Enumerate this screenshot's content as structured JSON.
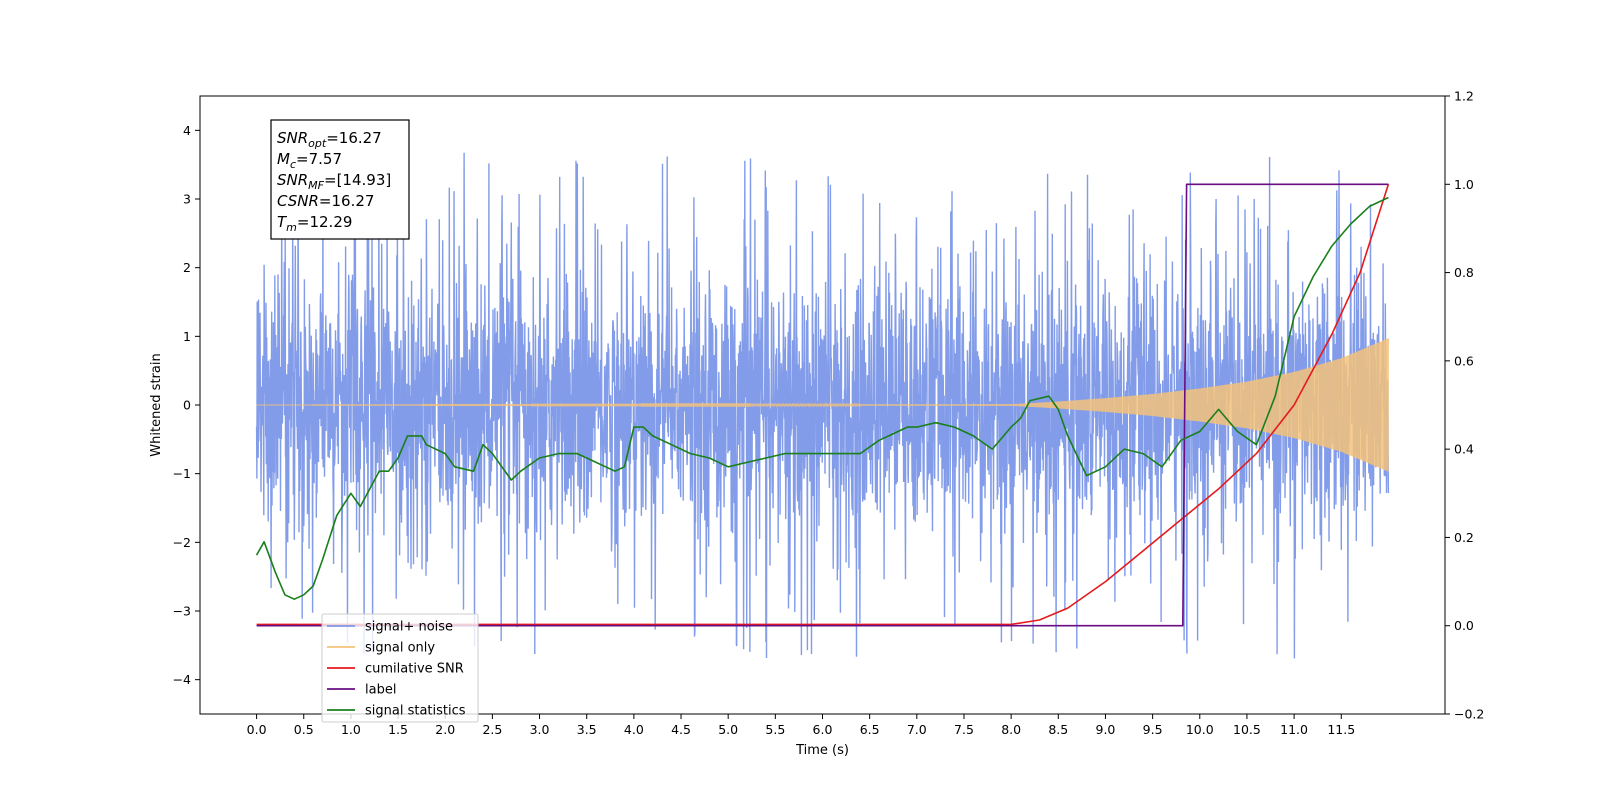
{
  "chart_data": {
    "type": "line",
    "title": "",
    "xlabel": "Time (s)",
    "ylabel": "Whitened strain",
    "ylabel_right": "",
    "xlim": [
      -0.6,
      12.6
    ],
    "ylim_left": [
      -4.5,
      4.5
    ],
    "ylim_right": [
      -0.2,
      1.2
    ],
    "x_ticks": [
      0.0,
      0.5,
      1.0,
      1.5,
      2.0,
      2.5,
      3.0,
      3.5,
      4.0,
      4.5,
      5.0,
      5.5,
      6.0,
      6.5,
      7.0,
      7.5,
      8.0,
      8.5,
      9.0,
      9.5,
      10.0,
      10.5,
      11.0,
      11.5
    ],
    "x_tick_labels": [
      "0.0",
      "0.5",
      "1.0",
      "1.5",
      "2.0",
      "2.5",
      "3.0",
      "3.5",
      "4.0",
      "4.5",
      "5.0",
      "5.5",
      "6.0",
      "6.5",
      "7.0",
      "7.5",
      "8.0",
      "8.5",
      "9.0",
      "9.5",
      "10.0",
      "10.5",
      "11.0",
      "11.5"
    ],
    "y_ticks_left": [
      4,
      3,
      2,
      1,
      0,
      -1,
      -2,
      -3,
      -4
    ],
    "y_tick_labels_left": [
      "4",
      "3",
      "2",
      "1",
      "0",
      "−1",
      "−2",
      "−3",
      "−4"
    ],
    "y_ticks_right": [
      1.2,
      1.0,
      0.8,
      0.6,
      0.4,
      0.2,
      0.0,
      -0.2
    ],
    "y_tick_labels_right": [
      "1.2",
      "1.0",
      "0.8",
      "0.6",
      "0.4",
      "0.2",
      "0.0",
      "−0.2"
    ],
    "grid": false,
    "legend_position": "lower-left",
    "legend": [
      {
        "label": "signal+ noise",
        "color": "#7b97e8"
      },
      {
        "label": "signal only",
        "color": "#f5c27a"
      },
      {
        "label": "cumilative SNR",
        "color": "#e41a1c"
      },
      {
        "label": "label",
        "color": "#6a0d83"
      },
      {
        "label": "signal statistics",
        "color": "#1a7f1a"
      }
    ],
    "annotation": {
      "lines": [
        {
          "base": "SNR",
          "sub": "opt",
          "value": "=16.27"
        },
        {
          "base": "M",
          "sub": "c",
          "value": "=7.57"
        },
        {
          "base": "SNR",
          "sub": "MF",
          "value": "=[14.93]"
        },
        {
          "base": "CSNR",
          "sub": "",
          "value": "=16.27"
        },
        {
          "base": "T",
          "sub": "m",
          "value": "=12.29"
        }
      ]
    },
    "series": [
      {
        "name": "signal+ noise",
        "axis": "left",
        "color": "#7b97e8",
        "x_range": [
          0.0,
          12.0
        ],
        "center": 0.0,
        "dense_band": [
          -1.5,
          1.5
        ],
        "peak_band": [
          -3.7,
          4.1
        ],
        "max": 4.1,
        "min": -4.05
      },
      {
        "name": "signal only",
        "axis": "left",
        "color": "#f5c27a",
        "x_range": [
          0.0,
          12.0
        ],
        "envelope": {
          "x": [
            0.0,
            8.0,
            8.5,
            9.0,
            9.5,
            10.0,
            10.5,
            11.0,
            11.5,
            12.0
          ],
          "amp": [
            0.0,
            0.01,
            0.05,
            0.1,
            0.16,
            0.24,
            0.34,
            0.48,
            0.68,
            0.97
          ]
        }
      },
      {
        "name": "cumilative SNR",
        "axis": "right",
        "color": "#e41a1c",
        "x": [
          0.0,
          8.0,
          8.3,
          8.6,
          9.0,
          9.4,
          9.8,
          10.2,
          10.6,
          11.0,
          11.4,
          11.7,
          12.0
        ],
        "y": [
          0.003,
          0.003,
          0.013,
          0.04,
          0.1,
          0.17,
          0.24,
          0.31,
          0.39,
          0.5,
          0.66,
          0.8,
          1.0
        ]
      },
      {
        "name": "label",
        "axis": "right",
        "color": "#6a0d83",
        "x": [
          0.0,
          9.82,
          9.86,
          12.0
        ],
        "y": [
          0.0,
          0.0,
          1.0,
          1.0
        ]
      },
      {
        "name": "signal statistics",
        "axis": "right",
        "color": "#1a7f1a",
        "x": [
          0.0,
          0.08,
          0.2,
          0.3,
          0.4,
          0.5,
          0.6,
          0.7,
          0.85,
          1.0,
          1.1,
          1.2,
          1.3,
          1.4,
          1.5,
          1.6,
          1.75,
          1.8,
          2.0,
          2.1,
          2.3,
          2.4,
          2.5,
          2.7,
          2.8,
          3.0,
          3.2,
          3.4,
          3.5,
          3.7,
          3.8,
          3.9,
          4.0,
          4.1,
          4.2,
          4.4,
          4.6,
          4.8,
          5.0,
          5.2,
          5.4,
          5.6,
          5.8,
          6.0,
          6.2,
          6.4,
          6.6,
          6.8,
          6.9,
          7.0,
          7.2,
          7.4,
          7.6,
          7.8,
          8.0,
          8.1,
          8.2,
          8.4,
          8.5,
          8.6,
          8.8,
          9.0,
          9.2,
          9.4,
          9.6,
          9.8,
          10.0,
          10.2,
          10.4,
          10.6,
          10.8,
          11.0,
          11.2,
          11.4,
          11.6,
          11.8,
          12.0
        ],
        "y": [
          0.16,
          0.19,
          0.12,
          0.07,
          0.06,
          0.07,
          0.09,
          0.15,
          0.25,
          0.3,
          0.27,
          0.31,
          0.35,
          0.35,
          0.38,
          0.43,
          0.43,
          0.41,
          0.39,
          0.36,
          0.35,
          0.41,
          0.39,
          0.33,
          0.35,
          0.38,
          0.39,
          0.39,
          0.38,
          0.36,
          0.35,
          0.36,
          0.45,
          0.45,
          0.43,
          0.41,
          0.39,
          0.38,
          0.36,
          0.37,
          0.38,
          0.39,
          0.39,
          0.39,
          0.39,
          0.39,
          0.42,
          0.44,
          0.45,
          0.45,
          0.46,
          0.45,
          0.43,
          0.4,
          0.45,
          0.47,
          0.51,
          0.52,
          0.49,
          0.43,
          0.34,
          0.36,
          0.4,
          0.39,
          0.36,
          0.42,
          0.44,
          0.49,
          0.44,
          0.41,
          0.52,
          0.7,
          0.79,
          0.86,
          0.91,
          0.95,
          0.97
        ]
      }
    ]
  }
}
